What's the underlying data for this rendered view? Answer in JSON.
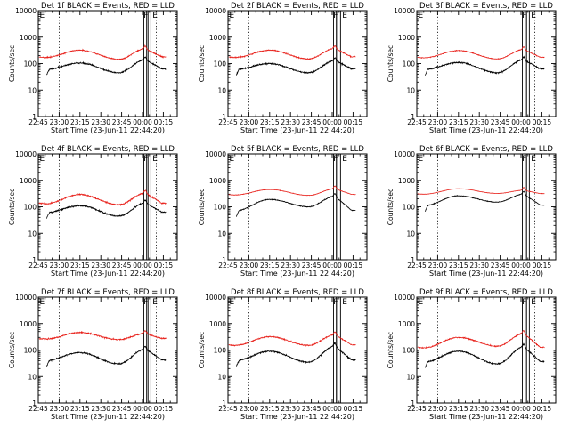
{
  "axis_common": {
    "ylabel": "Counts/sec",
    "xlabel": "Start Time (23-Jun-11 22:44:20)",
    "x_ticks": [
      "22:45",
      "23:00",
      "23:15",
      "23:30",
      "23:45",
      "00:00",
      "00:15"
    ],
    "y_ticks": [
      "1",
      "10",
      "100",
      "1000",
      "10000"
    ],
    "y_scale": "log",
    "ylim": [
      1,
      10000
    ],
    "x_range_minutes_from_22:45": [
      0,
      100
    ],
    "vertical_markers": {
      "dotted_minutes": [
        15,
        85
      ],
      "solid_minutes": [
        76,
        78,
        79,
        81
      ],
      "marker_labels": [
        "F",
        "E"
      ],
      "corner_label": "E"
    },
    "colors": {
      "events": "#000000",
      "lld": "#e8201a",
      "axis": "#000000"
    }
  },
  "chart_data": [
    {
      "type": "line",
      "title": "Det 1f BLACK = Events, RED = LLD",
      "series": [
        {
          "key": "events",
          "color": "#000000",
          "base": 60,
          "peak1": 105,
          "low": 45,
          "peak2": 140,
          "noise": 0.05
        },
        {
          "key": "lld",
          "color": "#e8201a",
          "base": 170,
          "peak1": 320,
          "low": 145,
          "peak2": 360,
          "noise": 0.04
        }
      ]
    },
    {
      "type": "line",
      "title": "Det 2f BLACK = Events, RED = LLD",
      "series": [
        {
          "key": "events",
          "color": "#000000",
          "base": 60,
          "peak1": 100,
          "low": 45,
          "peak2": 130,
          "noise": 0.05
        },
        {
          "key": "lld",
          "color": "#e8201a",
          "base": 170,
          "peak1": 320,
          "low": 150,
          "peak2": 370,
          "noise": 0.04
        }
      ]
    },
    {
      "type": "line",
      "title": "Det 3f BLACK = Events, RED = LLD",
      "series": [
        {
          "key": "events",
          "color": "#000000",
          "base": 60,
          "peak1": 110,
          "low": 45,
          "peak2": 140,
          "noise": 0.05
        },
        {
          "key": "lld",
          "color": "#e8201a",
          "base": 165,
          "peak1": 310,
          "low": 150,
          "peak2": 340,
          "noise": 0.025
        }
      ]
    },
    {
      "type": "line",
      "title": "Det 4f BLACK = Events, RED = LLD",
      "series": [
        {
          "key": "events",
          "color": "#000000",
          "base": 60,
          "peak1": 110,
          "low": 45,
          "peak2": 140,
          "noise": 0.05
        },
        {
          "key": "lld",
          "color": "#e8201a",
          "base": 130,
          "peak1": 290,
          "low": 120,
          "peak2": 330,
          "noise": 0.05
        }
      ]
    },
    {
      "type": "line",
      "title": "Det 5f BLACK = Events, RED = LLD",
      "series": [
        {
          "key": "events",
          "color": "#000000",
          "base": 70,
          "peak1": 190,
          "low": 100,
          "peak2": 250,
          "noise": 0.03
        },
        {
          "key": "lld",
          "color": "#e8201a",
          "base": 280,
          "peak1": 450,
          "low": 270,
          "peak2": 480,
          "noise": 0.015
        }
      ]
    },
    {
      "type": "line",
      "title": "Det 6f BLACK = Events, RED = LLD",
      "series": [
        {
          "key": "events",
          "color": "#000000",
          "base": 110,
          "peak1": 260,
          "low": 150,
          "peak2": 300,
          "noise": 0.025
        },
        {
          "key": "lld",
          "color": "#e8201a",
          "base": 300,
          "peak1": 480,
          "low": 320,
          "peak2": 420,
          "noise": 0.01
        }
      ]
    },
    {
      "type": "line",
      "title": "Det 7f BLACK = Events, RED = LLD",
      "series": [
        {
          "key": "events",
          "color": "#000000",
          "base": 40,
          "peak1": 80,
          "low": 30,
          "peak2": 110,
          "noise": 0.05
        },
        {
          "key": "lld",
          "color": "#e8201a",
          "base": 260,
          "peak1": 460,
          "low": 250,
          "peak2": 420,
          "noise": 0.05
        }
      ]
    },
    {
      "type": "line",
      "title": "Det 8f BLACK = Events, RED = LLD",
      "series": [
        {
          "key": "events",
          "color": "#000000",
          "base": 40,
          "peak1": 90,
          "low": 35,
          "peak2": 140,
          "noise": 0.05
        },
        {
          "key": "lld",
          "color": "#e8201a",
          "base": 150,
          "peak1": 320,
          "low": 150,
          "peak2": 380,
          "noise": 0.04
        }
      ]
    },
    {
      "type": "line",
      "title": "Det 9f BLACK = Events, RED = LLD",
      "series": [
        {
          "key": "events",
          "color": "#000000",
          "base": 35,
          "peak1": 90,
          "low": 30,
          "peak2": 130,
          "noise": 0.05
        },
        {
          "key": "lld",
          "color": "#e8201a",
          "base": 120,
          "peak1": 300,
          "low": 140,
          "peak2": 420,
          "noise": 0.04
        }
      ]
    }
  ]
}
